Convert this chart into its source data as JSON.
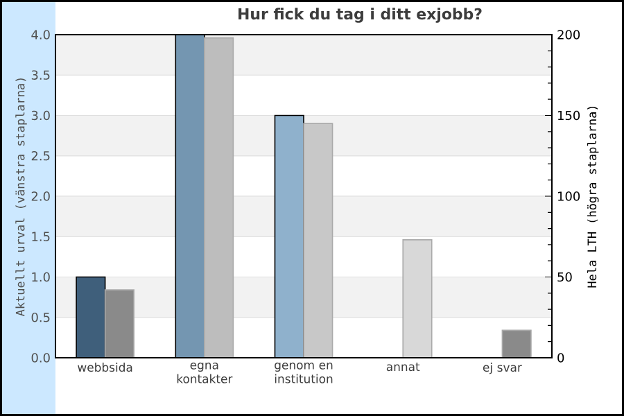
{
  "chart_data": {
    "type": "bar",
    "title": "Hur fick du tag i ditt exjobb?",
    "ylabel": "Aktuellt urval (vänstra staplarna)",
    "y2label": "Hela LTH (högra staplarna)",
    "categories": [
      "webbsida",
      "egna kontakter",
      "genom en institution",
      "annat",
      "ej svar"
    ],
    "series": [
      {
        "colors": [
          "#3f5f7b",
          "#7496b1",
          "#8fb1cc",
          "#a8c4dc",
          "#c0d4e6"
        ],
        "values": [
          1,
          4,
          3,
          0,
          0
        ]
      },
      {
        "axis": "y2",
        "colors": [
          "#8a8a8a",
          "#bdbdbd",
          "#c8c8c8",
          "#d8d8d8",
          "#8a8a8a"
        ],
        "values": [
          42,
          198,
          145,
          73,
          17
        ]
      }
    ],
    "ylim": [
      0,
      4
    ],
    "yticks": [
      {
        "value": 0,
        "label": "0.0"
      },
      0.5,
      {
        "value": 1,
        "label": "1.0"
      },
      1.5,
      {
        "value": 2,
        "label": "2.0"
      },
      2.5,
      {
        "value": 3,
        "label": "3.0"
      },
      3.5,
      {
        "value": 4,
        "label": "4.0"
      }
    ],
    "y2lim": [
      0,
      200
    ],
    "y2ticks": [
      0,
      50,
      100,
      150,
      200
    ],
    "grid": "y"
  }
}
